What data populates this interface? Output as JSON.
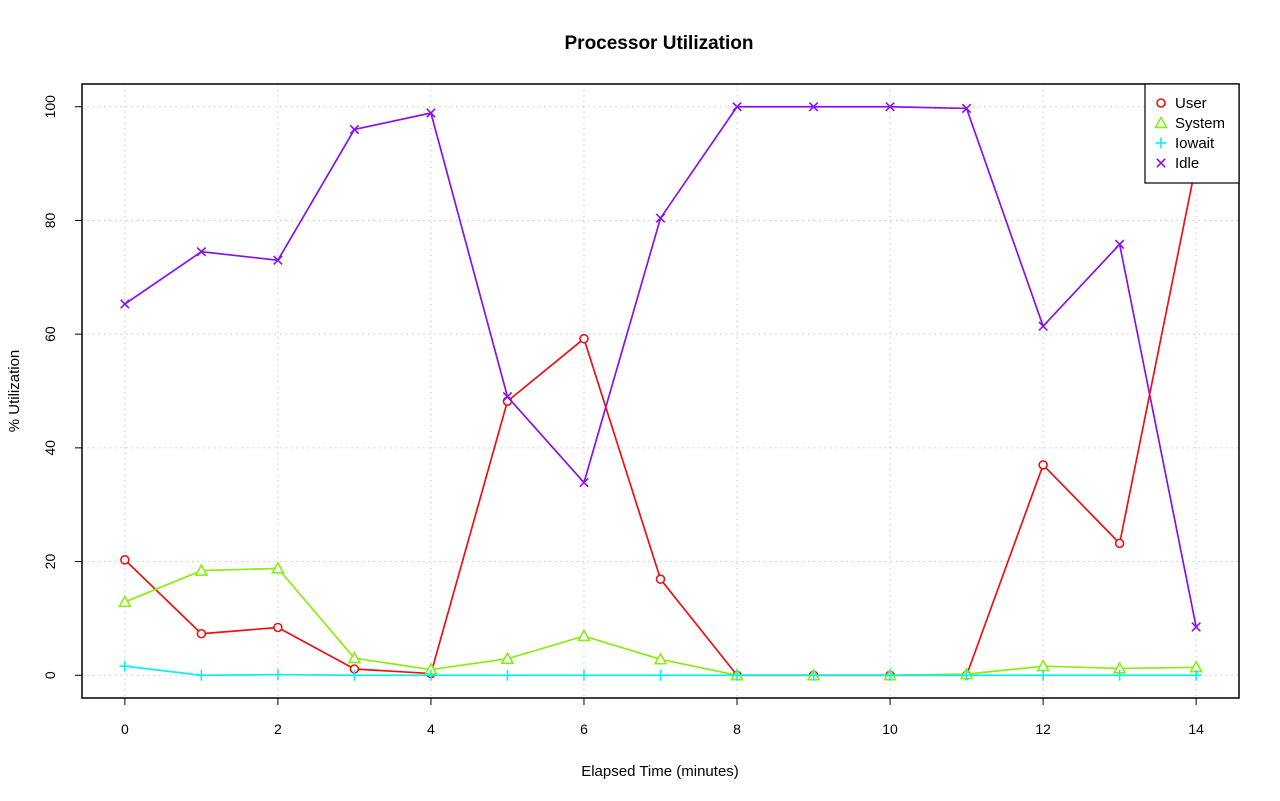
{
  "chart_data": {
    "type": "line",
    "title": "Processor Utilization",
    "xlabel": "Elapsed Time (minutes)",
    "ylabel": "% Utilization",
    "xlim": [
      -0.56,
      14.56
    ],
    "ylim": [
      -4,
      104
    ],
    "x_ticks": [
      0,
      2,
      4,
      6,
      8,
      10,
      12,
      14
    ],
    "y_ticks": [
      0,
      20,
      40,
      60,
      80,
      100
    ],
    "grid": true,
    "legend_position": "top-right",
    "x": [
      0,
      1,
      2,
      3,
      4,
      5,
      6,
      7,
      8,
      9,
      10,
      11,
      12,
      13,
      14
    ],
    "series": [
      {
        "name": "User",
        "color": "#ee1111",
        "marker": "circle",
        "values": [
          20.3,
          7.3,
          8.4,
          1.1,
          0.3,
          48.2,
          59.2,
          16.9,
          0.0,
          0.0,
          0.0,
          0.0,
          37.0,
          23.2,
          90.0
        ]
      },
      {
        "name": "System",
        "color": "#88ee11",
        "marker": "triangle",
        "values": [
          12.9,
          18.4,
          18.8,
          3.0,
          1.0,
          2.9,
          6.9,
          2.8,
          0.0,
          0.0,
          0.0,
          0.2,
          1.6,
          1.2,
          1.4
        ]
      },
      {
        "name": "Iowait",
        "color": "#11eeee",
        "marker": "plus",
        "values": [
          1.6,
          0.0,
          0.1,
          0.0,
          0.0,
          0.0,
          0.0,
          0.0,
          0.0,
          0.0,
          0.0,
          0.0,
          0.0,
          0.0,
          0.0
        ]
      },
      {
        "name": "Idle",
        "color": "#8811ee",
        "marker": "cross",
        "values": [
          65.3,
          74.5,
          73.0,
          96.0,
          98.9,
          49.0,
          33.9,
          80.4,
          100.0,
          100.0,
          100.0,
          99.7,
          61.4,
          75.8,
          8.5
        ]
      }
    ]
  }
}
